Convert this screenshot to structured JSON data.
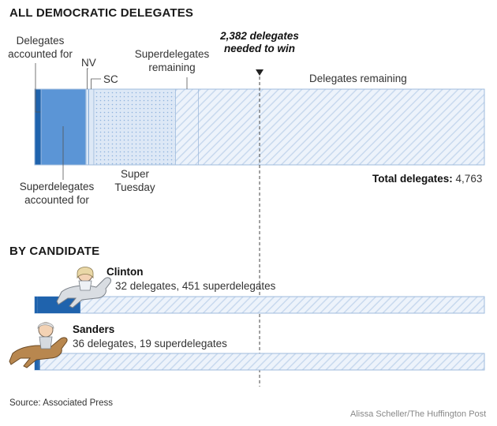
{
  "colors": {
    "accounted_dark": "#1f63ad",
    "accounted_mid": "#5b95d6",
    "remaining_fill": "#edf3fb",
    "hatch": "#c8d9ee",
    "border": "#9fbbdc",
    "dots": "#8fb3de",
    "needed_line": "#444444"
  },
  "chart_data": [
    {
      "type": "bar",
      "title": "ALL DEMOCRATIC DELEGATES",
      "stacked": true,
      "orientation": "horizontal",
      "xlim": [
        0,
        4763
      ],
      "total_label": "Total delegates:",
      "total_value": "4,763",
      "needed_label": "2,382 delegates needed to win",
      "needed_value": 2382,
      "segments": [
        {
          "name": "Delegates accounted for",
          "value": 68,
          "color_key": "accounted_dark"
        },
        {
          "name": "Superdelegates accounted for",
          "value": 470,
          "color_key": "accounted_mid"
        },
        {
          "name": "NV",
          "value": 35,
          "pattern": "vertical-stripes"
        },
        {
          "name": "SC",
          "value": 53,
          "pattern": "light"
        },
        {
          "name": "Super Tuesday",
          "value": 865,
          "pattern": "dots"
        },
        {
          "name": "Superdelegates remaining",
          "value": 242,
          "pattern": "hatch"
        },
        {
          "name": "Delegates remaining",
          "value": 3030,
          "pattern": "hatch"
        }
      ]
    },
    {
      "type": "bar",
      "title": "BY CANDIDATE",
      "orientation": "horizontal",
      "xlim": [
        0,
        4763
      ],
      "series": [
        {
          "name": "Clinton",
          "delegates": 32,
          "superdelegates": 451,
          "detail": "32 delegates, 451 superdelegates"
        },
        {
          "name": "Sanders",
          "delegates": 36,
          "superdelegates": 19,
          "detail": "36 delegates, 19 superdelegates"
        }
      ]
    }
  ],
  "labels": {
    "delegates_accounted_for": "Delegates\naccounted for",
    "superdelegates_accounted_for": "Superdelegates\naccounted for",
    "nv": "NV",
    "sc": "SC",
    "super_tuesday": "Super\nTuesday",
    "superdelegates_remaining": "Superdelegates\nremaining",
    "delegates_remaining": "Delegates remaining",
    "needed_line1": "2,382 delegates",
    "needed_line2": "needed to win"
  },
  "footer": {
    "source": "Source: Associated Press",
    "credit": "Alissa Scheller/The Huffington Post"
  }
}
